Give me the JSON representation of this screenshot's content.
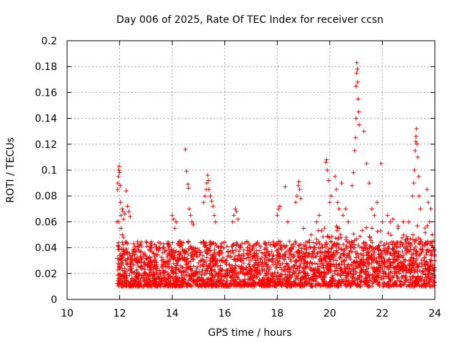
{
  "chart_data": {
    "type": "scatter",
    "title": "Day 006 of 2025, Rate Of TEC Index for receiver ccsn",
    "xlabel": "GPS time / hours",
    "ylabel": "ROTI / TECUs",
    "xlim": [
      10,
      24
    ],
    "ylim": [
      0,
      0.2
    ],
    "xticks": [
      "10",
      "12",
      "14",
      "16",
      "18",
      "20",
      "22",
      "24"
    ],
    "yticks": [
      "0",
      "0.02",
      "0.04",
      "0.06",
      "0.08",
      "0.1",
      "0.12",
      "0.14",
      "0.16",
      "0.18",
      "0.2"
    ],
    "grid": true,
    "marker": "+",
    "series_color": "#ff0000",
    "series": [
      {
        "name": "ROTI",
        "baseline": {
          "x_start": 11.9,
          "x_end": 24.0,
          "band_low": 0.01,
          "band_high": 0.045,
          "point_count": 3000
        },
        "points": [
          [
            11.9,
            0.06
          ],
          [
            11.92,
            0.085
          ],
          [
            11.93,
            0.09
          ],
          [
            11.95,
            0.095
          ],
          [
            11.97,
            0.1
          ],
          [
            11.98,
            0.103
          ],
          [
            12.0,
            0.098
          ],
          [
            12.02,
            0.088
          ],
          [
            12.03,
            0.075
          ],
          [
            12.05,
            0.065
          ],
          [
            12.1,
            0.07
          ],
          [
            12.12,
            0.068
          ],
          [
            12.15,
            0.062
          ],
          [
            12.2,
            0.066
          ],
          [
            12.25,
            0.084
          ],
          [
            12.3,
            0.072
          ],
          [
            12.35,
            0.068
          ],
          [
            12.4,
            0.064
          ],
          [
            11.95,
            0.06
          ],
          [
            12.05,
            0.055
          ],
          [
            12.1,
            0.05
          ],
          [
            12.15,
            0.048
          ],
          [
            14.0,
            0.065
          ],
          [
            14.05,
            0.062
          ],
          [
            14.1,
            0.055
          ],
          [
            14.15,
            0.06
          ],
          [
            14.3,
            0.045
          ],
          [
            14.5,
            0.116
          ],
          [
            14.55,
            0.099
          ],
          [
            14.6,
            0.089
          ],
          [
            14.62,
            0.086
          ],
          [
            14.65,
            0.07
          ],
          [
            14.7,
            0.065
          ],
          [
            14.75,
            0.06
          ],
          [
            14.8,
            0.058
          ],
          [
            15.2,
            0.075
          ],
          [
            15.25,
            0.08
          ],
          [
            15.3,
            0.085
          ],
          [
            15.32,
            0.09
          ],
          [
            15.35,
            0.096
          ],
          [
            15.38,
            0.092
          ],
          [
            15.4,
            0.085
          ],
          [
            15.45,
            0.08
          ],
          [
            15.5,
            0.076
          ],
          [
            15.55,
            0.072
          ],
          [
            15.6,
            0.065
          ],
          [
            15.65,
            0.06
          ],
          [
            16.3,
            0.06
          ],
          [
            16.35,
            0.065
          ],
          [
            16.4,
            0.07
          ],
          [
            16.45,
            0.068
          ],
          [
            16.5,
            0.062
          ],
          [
            18.0,
            0.065
          ],
          [
            18.05,
            0.07
          ],
          [
            18.1,
            0.072
          ],
          [
            18.3,
            0.087
          ],
          [
            18.4,
            0.06
          ],
          [
            18.7,
            0.075
          ],
          [
            18.75,
            0.08
          ],
          [
            18.8,
            0.088
          ],
          [
            18.82,
            0.091
          ],
          [
            18.85,
            0.085
          ],
          [
            18.9,
            0.078
          ],
          [
            19.0,
            0.055
          ],
          [
            19.5,
            0.06
          ],
          [
            19.6,
            0.065
          ],
          [
            19.85,
            0.106
          ],
          [
            19.88,
            0.108
          ],
          [
            19.9,
            0.1
          ],
          [
            19.95,
            0.092
          ],
          [
            20.0,
            0.075
          ],
          [
            20.05,
            0.08
          ],
          [
            20.2,
            0.095
          ],
          [
            20.25,
            0.085
          ],
          [
            20.3,
            0.075
          ],
          [
            20.35,
            0.07
          ],
          [
            20.45,
            0.09
          ],
          [
            20.5,
            0.065
          ],
          [
            20.6,
            0.07
          ],
          [
            20.7,
            0.06
          ],
          [
            20.85,
            0.088
          ],
          [
            20.9,
            0.098
          ],
          [
            20.95,
            0.115
          ],
          [
            20.98,
            0.125
          ],
          [
            21.0,
            0.14
          ],
          [
            21.0,
            0.165
          ],
          [
            21.02,
            0.175
          ],
          [
            21.03,
            0.183
          ],
          [
            21.05,
            0.178
          ],
          [
            21.06,
            0.168
          ],
          [
            21.08,
            0.155
          ],
          [
            21.1,
            0.145
          ],
          [
            21.12,
            0.135
          ],
          [
            21.3,
            0.13
          ],
          [
            21.4,
            0.105
          ],
          [
            21.5,
            0.09
          ],
          [
            21.6,
            0.07
          ],
          [
            21.7,
            0.065
          ],
          [
            21.8,
            0.075
          ],
          [
            21.95,
            0.105
          ],
          [
            22.0,
            0.06
          ],
          [
            22.2,
            0.065
          ],
          [
            22.3,
            0.06
          ],
          [
            22.4,
            0.062
          ],
          [
            22.6,
            0.055
          ],
          [
            22.8,
            0.06
          ],
          [
            23.0,
            0.06
          ],
          [
            23.15,
            0.08
          ],
          [
            23.2,
            0.09
          ],
          [
            23.22,
            0.1
          ],
          [
            23.25,
            0.115
          ],
          [
            23.27,
            0.122
          ],
          [
            23.28,
            0.126
          ],
          [
            23.3,
            0.132
          ],
          [
            23.32,
            0.12
          ],
          [
            23.35,
            0.11
          ],
          [
            23.38,
            0.095
          ],
          [
            23.4,
            0.08
          ],
          [
            23.45,
            0.07
          ],
          [
            23.7,
            0.085
          ],
          [
            23.75,
            0.075
          ],
          [
            23.8,
            0.06
          ],
          [
            23.85,
            0.07
          ],
          [
            23.9,
            0.05
          ],
          [
            23.95,
            0.045
          ]
        ]
      }
    ]
  }
}
